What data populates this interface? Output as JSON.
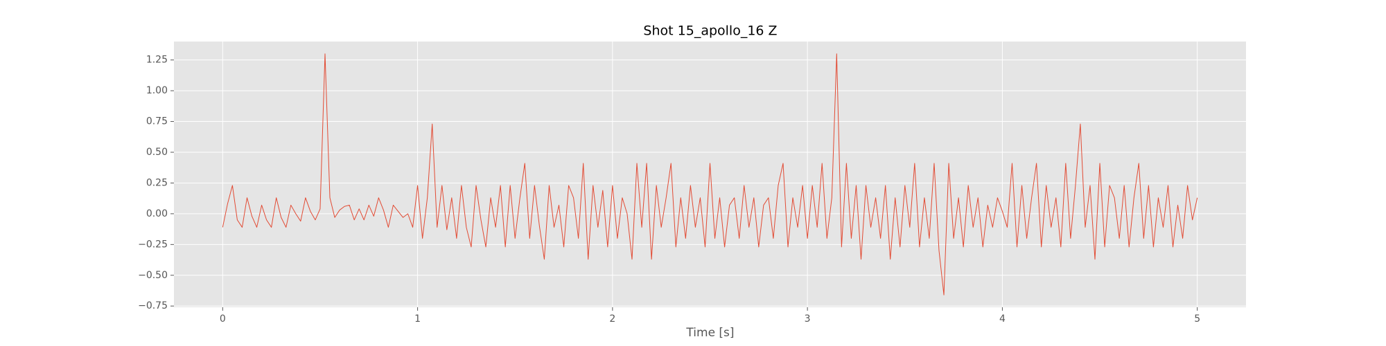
{
  "chart_data": {
    "type": "line",
    "title": "Shot 15_apollo_16 Z",
    "x_label": "Time [s]",
    "x": [
      0,
      0.025,
      0.05,
      0.075,
      0.1,
      0.125,
      0.15,
      0.175,
      0.2,
      0.225,
      0.25,
      0.275,
      0.3,
      0.325,
      0.35,
      0.375,
      0.4,
      0.425,
      0.45,
      0.475,
      0.5,
      0.525,
      0.55,
      0.575,
      0.6,
      0.625,
      0.65,
      0.675,
      0.7,
      0.725,
      0.75,
      0.775,
      0.8,
      0.825,
      0.85,
      0.875,
      0.9,
      0.925,
      0.95,
      0.975,
      1,
      1.025,
      1.05,
      1.075,
      1.1,
      1.125,
      1.15,
      1.175,
      1.2,
      1.225,
      1.25,
      1.275,
      1.3,
      1.325,
      1.35,
      1.375,
      1.4,
      1.425,
      1.45,
      1.475,
      1.5,
      1.525,
      1.55,
      1.575,
      1.6,
      1.625,
      1.65,
      1.675,
      1.7,
      1.725,
      1.75,
      1.775,
      1.8,
      1.825,
      1.85,
      1.875,
      1.9,
      1.925,
      1.95,
      1.975,
      2,
      2.025,
      2.05,
      2.075,
      2.1,
      2.125,
      2.15,
      2.175,
      2.2,
      2.225,
      2.25,
      2.275,
      2.3,
      2.325,
      2.35,
      2.375,
      2.4,
      2.425,
      2.45,
      2.475,
      2.5,
      2.525,
      2.55,
      2.575,
      2.6,
      2.625,
      2.65,
      2.675,
      2.7,
      2.725,
      2.75,
      2.775,
      2.8,
      2.825,
      2.85,
      2.875,
      2.9,
      2.925,
      2.95,
      2.975,
      3,
      3.025,
      3.05,
      3.075,
      3.1,
      3.125,
      3.15,
      3.175,
      3.2,
      3.225,
      3.25,
      3.275,
      3.3,
      3.325,
      3.35,
      3.375,
      3.4,
      3.425,
      3.45,
      3.475,
      3.5,
      3.525,
      3.55,
      3.575,
      3.6,
      3.625,
      3.65,
      3.675,
      3.7,
      3.725,
      3.75,
      3.775,
      3.8,
      3.825,
      3.85,
      3.875,
      3.9,
      3.925,
      3.95,
      3.975,
      4,
      4.025,
      4.05,
      4.075,
      4.1,
      4.125,
      4.15,
      4.175,
      4.2,
      4.225,
      4.25,
      4.275,
      4.3,
      4.325,
      4.35,
      4.375,
      4.4,
      4.425,
      4.45,
      4.475,
      4.5,
      4.525,
      4.55,
      4.575,
      4.6,
      4.625,
      4.65,
      4.675,
      4.7,
      4.725,
      4.75,
      4.775,
      4.8,
      4.825,
      4.85,
      4.875,
      4.9,
      4.925,
      4.95,
      4.975,
      5
    ],
    "series": [
      {
        "color": "#E24A33",
        "values": [
          -0.11,
          0.08,
          0.23,
          -0.05,
          -0.11,
          0.13,
          -0.02,
          -0.11,
          0.07,
          -0.05,
          -0.11,
          0.13,
          -0.03,
          -0.11,
          0.07,
          0.0,
          -0.06,
          0.13,
          0.02,
          -0.05,
          0.04,
          1.3,
          0.13,
          -0.03,
          0.03,
          0.06,
          0.07,
          -0.05,
          0.04,
          -0.05,
          0.07,
          -0.02,
          0.13,
          0.03,
          -0.11,
          0.07,
          0.02,
          -0.03,
          0.0,
          -0.11,
          0.23,
          -0.2,
          0.13,
          0.73,
          -0.11,
          0.23,
          -0.13,
          0.13,
          -0.2,
          0.23,
          -0.11,
          -0.27,
          0.23,
          -0.05,
          -0.27,
          0.13,
          -0.11,
          0.23,
          -0.27,
          0.23,
          -0.2,
          0.13,
          0.41,
          -0.2,
          0.23,
          -0.1,
          -0.37,
          0.23,
          -0.11,
          0.07,
          -0.27,
          0.23,
          0.13,
          -0.2,
          0.41,
          -0.37,
          0.23,
          -0.11,
          0.19,
          -0.27,
          0.23,
          -0.2,
          0.13,
          0.0,
          -0.37,
          0.41,
          -0.11,
          0.41,
          -0.37,
          0.23,
          -0.11,
          0.13,
          0.41,
          -0.27,
          0.13,
          -0.2,
          0.23,
          -0.11,
          0.13,
          -0.27,
          0.41,
          -0.2,
          0.13,
          -0.27,
          0.07,
          0.13,
          -0.2,
          0.23,
          -0.11,
          0.13,
          -0.27,
          0.07,
          0.13,
          -0.2,
          0.23,
          0.41,
          -0.27,
          0.13,
          -0.11,
          0.23,
          -0.2,
          0.23,
          -0.11,
          0.41,
          -0.2,
          0.13,
          1.3,
          -0.27,
          0.41,
          -0.2,
          0.23,
          -0.37,
          0.23,
          -0.11,
          0.13,
          -0.2,
          0.23,
          -0.37,
          0.13,
          -0.27,
          0.23,
          -0.11,
          0.41,
          -0.27,
          0.13,
          -0.2,
          0.41,
          -0.3,
          -0.66,
          0.41,
          -0.2,
          0.13,
          -0.27,
          0.23,
          -0.11,
          0.13,
          -0.27,
          0.07,
          -0.11,
          0.13,
          0.02,
          -0.11,
          0.41,
          -0.27,
          0.23,
          -0.2,
          0.13,
          0.41,
          -0.27,
          0.23,
          -0.11,
          0.13,
          -0.27,
          0.41,
          -0.2,
          0.23,
          0.73,
          -0.11,
          0.23,
          -0.37,
          0.41,
          -0.27,
          0.23,
          0.13,
          -0.2,
          0.23,
          -0.27,
          0.13,
          0.41,
          -0.2,
          0.23,
          -0.27,
          0.13,
          -0.11,
          0.23,
          -0.27,
          0.07,
          -0.2,
          0.23,
          -0.05,
          0.13
        ]
      }
    ],
    "xlim": [
      -0.25,
      5.25
    ],
    "xticks": [
      0,
      1,
      2,
      3,
      4,
      5
    ],
    "ylim": [
      -0.76,
      1.4
    ],
    "yticks": [
      {
        "value": -0.75,
        "label": "−0.75"
      },
      {
        "value": -0.5,
        "label": "−0.50"
      },
      {
        "value": -0.25,
        "label": "−0.25"
      },
      {
        "value": 0,
        "label": "0.00"
      },
      {
        "value": 0.25,
        "label": "0.25"
      },
      {
        "value": 0.5,
        "label": "0.50"
      },
      {
        "value": 0.75,
        "label": "0.75"
      },
      {
        "value": 1,
        "label": "1.00"
      },
      {
        "value": 1.25,
        "label": "1.25"
      }
    ],
    "grid": true
  }
}
